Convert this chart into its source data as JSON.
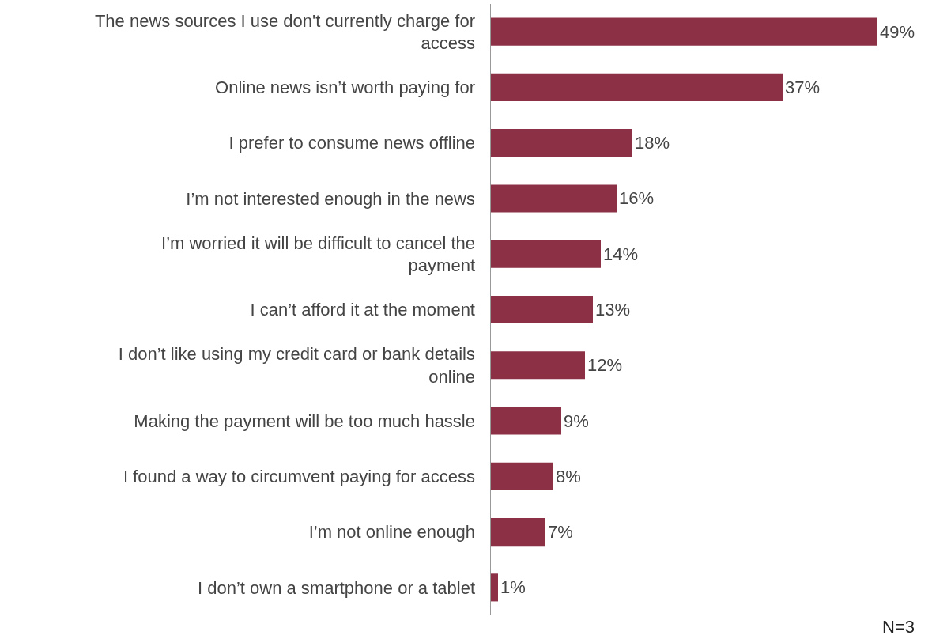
{
  "chart_data": {
    "type": "bar",
    "orientation": "horizontal",
    "categories": [
      "The news sources I use don't currently charge for access",
      "Online news isn’t worth paying for",
      "I prefer to consume news offline",
      "I’m not interested enough in the news",
      "I’m worried it will be difficult to cancel the payment",
      "I can’t afford it at the moment",
      "I don’t like using my credit card or bank details online",
      "Making the payment will be too much hassle",
      "I found a way to circumvent paying for access",
      "I’m not online enough",
      "I don’t own a smartphone or a tablet"
    ],
    "values": [
      49,
      37,
      18,
      16,
      14,
      13,
      12,
      9,
      8,
      7,
      1
    ],
    "value_labels": [
      "49%",
      "37%",
      "18%",
      "16%",
      "14%",
      "13%",
      "12%",
      "9%",
      "8%",
      "7%",
      "1%"
    ],
    "color": "#8b3045",
    "annotations": [
      "N=3"
    ],
    "legend": false
  }
}
